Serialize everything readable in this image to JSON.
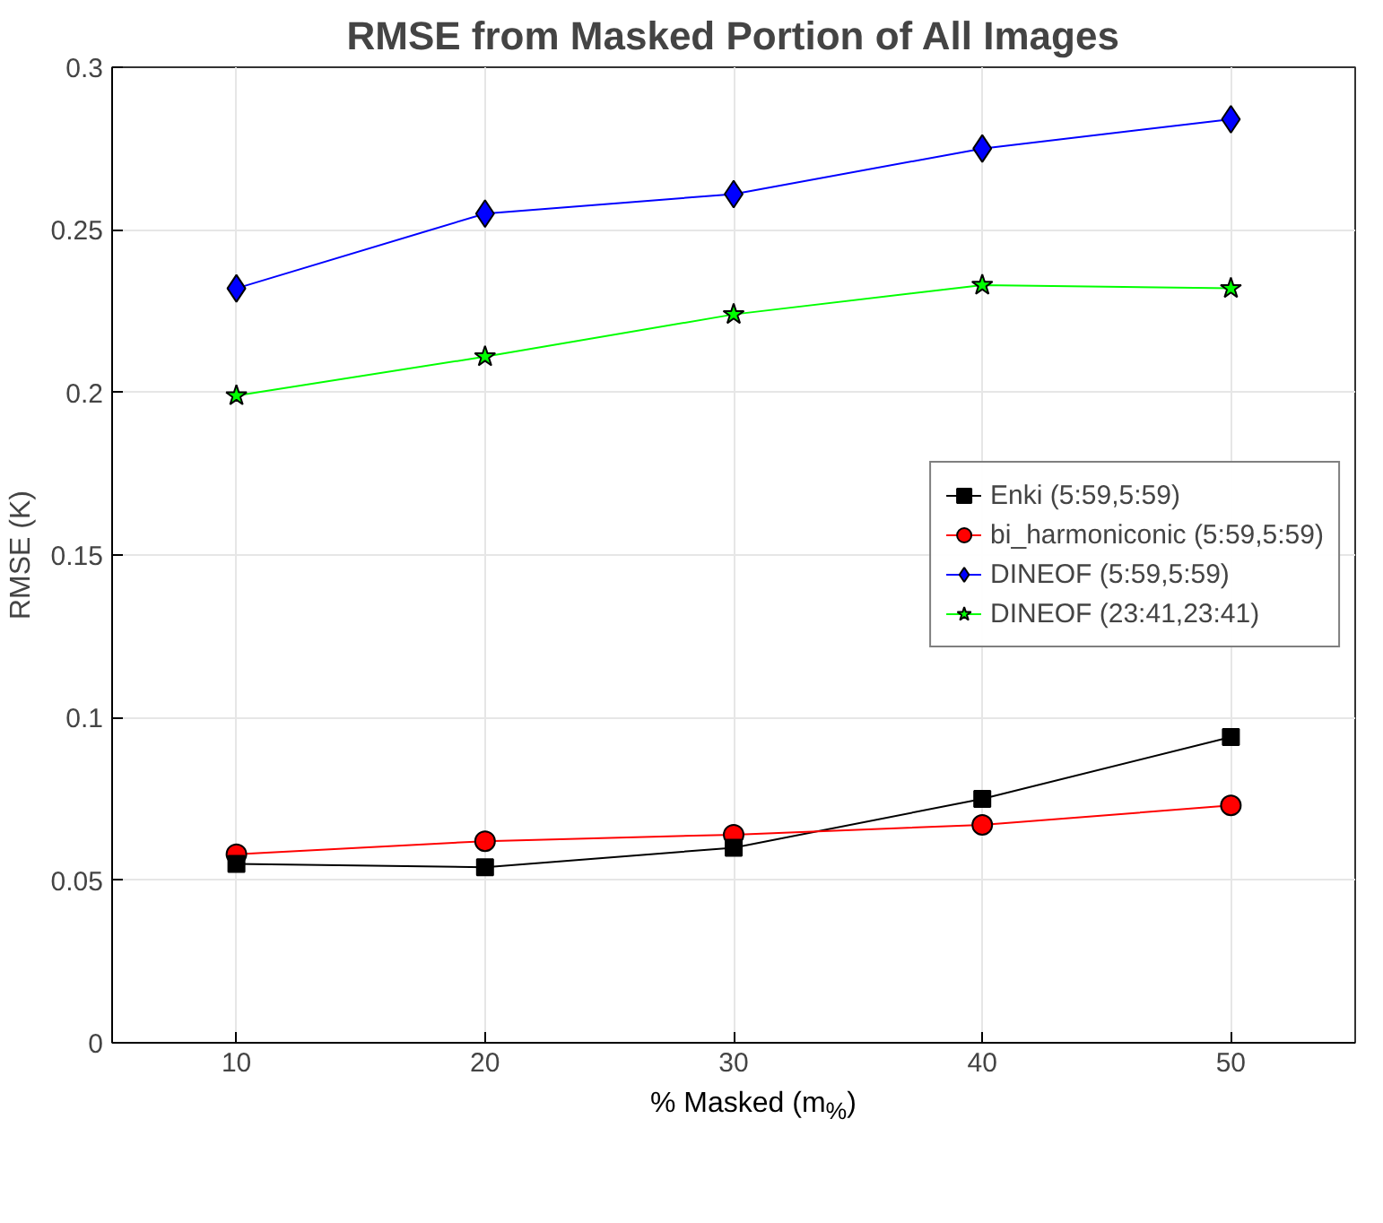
{
  "chart_data": {
    "type": "line",
    "title": "RMSE from Masked Portion of All Images",
    "xlabel": "% Masked (m$_{%}$)",
    "ylabel": "RMSE (K)",
    "x": [
      10,
      20,
      30,
      40,
      50
    ],
    "series": [
      {
        "name": "Enki (5:59,5:59)",
        "color": "#000000",
        "marker": "square",
        "values": [
          0.055,
          0.054,
          0.06,
          0.075,
          0.094
        ]
      },
      {
        "name": "bi_harmoniconic (5:59,5:59)",
        "color": "#ff0000",
        "marker": "circle",
        "values": [
          0.058,
          0.062,
          0.064,
          0.067,
          0.073
        ]
      },
      {
        "name": "DINEOF (5:59,5:59)",
        "color": "#0000ff",
        "marker": "diamond",
        "values": [
          0.232,
          0.255,
          0.261,
          0.275,
          0.284
        ]
      },
      {
        "name": "DINEOF (23:41,23:41)",
        "color": "#00ff00",
        "marker": "star",
        "values": [
          0.199,
          0.211,
          0.224,
          0.233,
          0.232
        ]
      }
    ],
    "xlim": [
      5,
      55
    ],
    "xticks": [
      10,
      20,
      30,
      40,
      50
    ],
    "ylim": [
      0,
      0.3
    ],
    "yticks": [
      0,
      0.05,
      0.1,
      0.15,
      0.2,
      0.25,
      0.3
    ],
    "grid": true,
    "legend": "right",
    "line_style": "solid"
  }
}
